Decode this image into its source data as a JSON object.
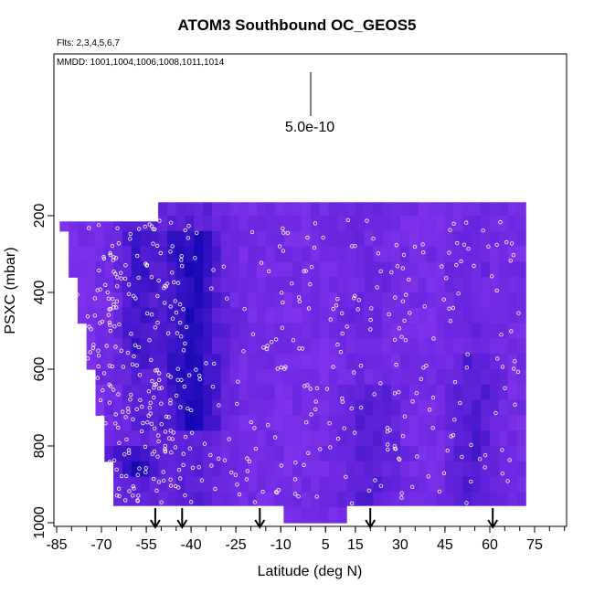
{
  "chart_data": {
    "type": "heatmap",
    "title": "ATOM3 Southbound OC_GEOS5",
    "flights_label": "Flts: 2,3,4,5,6,7",
    "dates_label": "MMDD: 1001,1004,1006,1008,1011,1014",
    "xlabel": "Latitude (deg N)",
    "ylabel": "PSXC (mbar)",
    "xlim": [
      -85,
      85
    ],
    "ylim": [
      1000,
      0
    ],
    "x_ticks": [
      -85,
      -70,
      -55,
      -40,
      -25,
      -10,
      5,
      15,
      30,
      45,
      60,
      75
    ],
    "x_tick_labels": [
      "-85",
      "-70",
      "-55",
      "-40",
      "-25",
      "-10",
      "5",
      "15",
      "30",
      "45",
      "60",
      "75"
    ],
    "y_ticks": [
      200,
      400,
      600,
      800,
      1000
    ],
    "y_tick_labels": [
      "200",
      "400",
      "600",
      "800",
      "1000"
    ],
    "scale_bar_label": "5.0e-10",
    "arrow_latitudes": [
      -52,
      -43,
      -17,
      20,
      61
    ],
    "colors": {
      "high": "#0000aa",
      "mid": "#5a1fd6",
      "low": "#8f3af5",
      "points": "#ffffff"
    },
    "grid": false,
    "legend": "none"
  }
}
